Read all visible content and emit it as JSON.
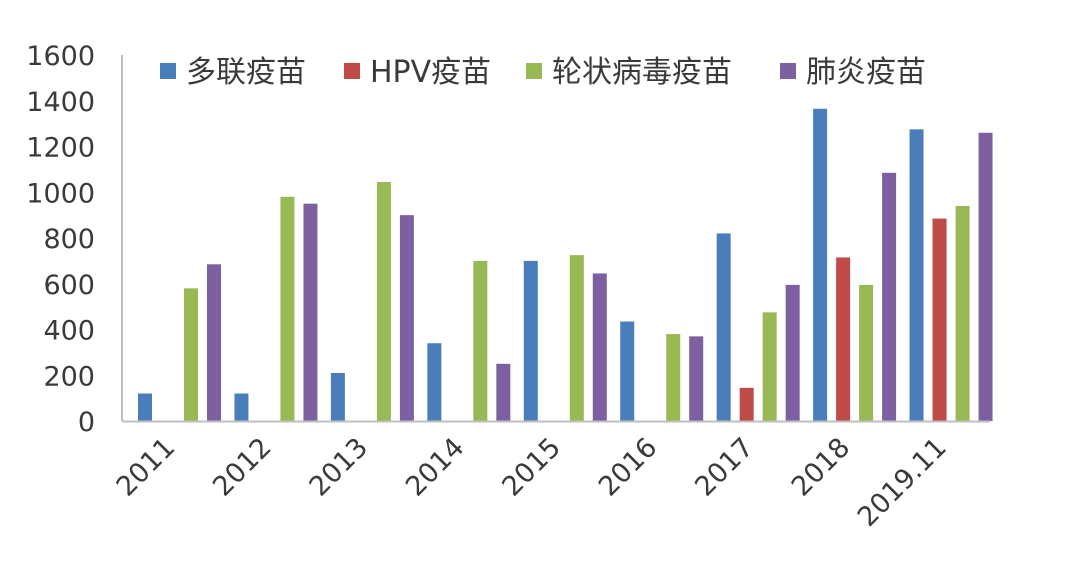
{
  "chart_data": {
    "type": "bar",
    "title": "",
    "xlabel": "",
    "ylabel": "",
    "ylim": [
      0,
      1600
    ],
    "yticks": [
      0,
      200,
      400,
      600,
      800,
      1000,
      1200,
      1400,
      1600
    ],
    "grid": false,
    "legend_position": "top",
    "categories": [
      "2011",
      "2012",
      "2013",
      "2014",
      "2015",
      "2016",
      "2017",
      "2018",
      "2019.11"
    ],
    "series": [
      {
        "name": "多联疫苗",
        "color": "#4a7ebb",
        "values": [
          120,
          120,
          210,
          340,
          700,
          435,
          820,
          1365,
          1275
        ]
      },
      {
        "name": "HPV疫苗",
        "color": "#be4b48",
        "values": [
          0,
          0,
          0,
          0,
          0,
          0,
          145,
          715,
          885
        ]
      },
      {
        "name": "轮状病毒疫苗",
        "color": "#98b954",
        "values": [
          580,
          980,
          1045,
          700,
          725,
          380,
          475,
          595,
          940
        ]
      },
      {
        "name": "肺炎疫苗",
        "color": "#7d60a0",
        "values": [
          685,
          950,
          900,
          250,
          645,
          370,
          595,
          1085,
          1260
        ]
      }
    ]
  }
}
